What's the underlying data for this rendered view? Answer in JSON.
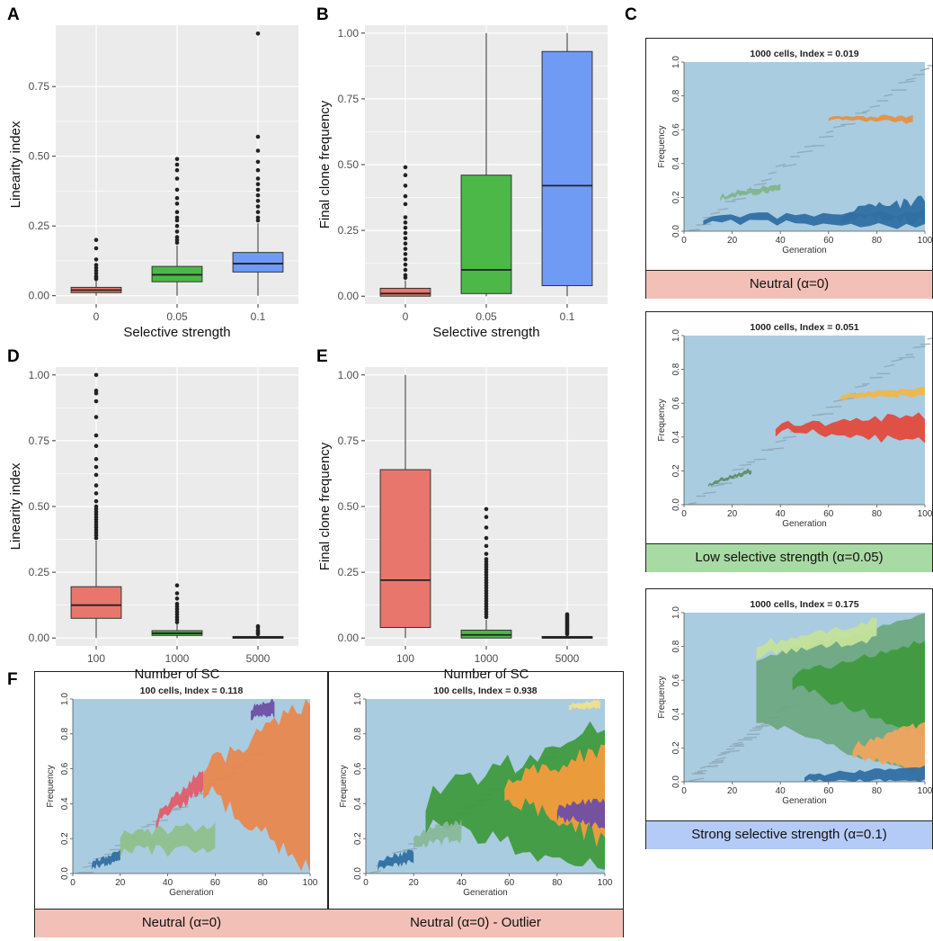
{
  "panel_letters": {
    "A": "A",
    "B": "B",
    "C": "C",
    "D": "D",
    "E": "E",
    "F": "F"
  },
  "colors": {
    "red": "#E8766C",
    "green": "#4CB848",
    "blue": "#6F9BF5",
    "panel_bg": "#EBEBEB",
    "muller_bg": "#A9CCE0",
    "cap_red": "#F3C0B8",
    "cap_green": "#A8DBA3",
    "cap_blue": "#B5CBF7"
  },
  "chart_data": [
    {
      "id": "A",
      "type": "box",
      "xlabel": "Selective strength",
      "ylabel": "Linearity index",
      "categories": [
        "0",
        "0.05",
        "0.1"
      ],
      "yticks": [
        "0.00",
        "0.25",
        "0.50",
        "0.75"
      ],
      "ylim": [
        -0.03,
        0.97
      ],
      "boxes": [
        {
          "q1": 0.011,
          "median": 0.02,
          "q3": 0.03,
          "whisk_lo": 0.0,
          "whisk_hi": 0.055,
          "outliers": [
            0.06,
            0.065,
            0.07,
            0.08,
            0.09,
            0.1,
            0.11,
            0.13,
            0.17,
            0.2
          ]
        },
        {
          "q1": 0.05,
          "median": 0.075,
          "q3": 0.105,
          "whisk_lo": 0.0,
          "whisk_hi": 0.18,
          "outliers": [
            0.19,
            0.2,
            0.21,
            0.23,
            0.25,
            0.27,
            0.28,
            0.3,
            0.33,
            0.35,
            0.38,
            0.42,
            0.45,
            0.47,
            0.49
          ]
        },
        {
          "q1": 0.085,
          "median": 0.115,
          "q3": 0.155,
          "whisk_lo": 0.0,
          "whisk_hi": 0.26,
          "outliers": [
            0.27,
            0.28,
            0.3,
            0.32,
            0.34,
            0.36,
            0.38,
            0.4,
            0.42,
            0.45,
            0.48,
            0.52,
            0.57,
            0.94
          ]
        }
      ]
    },
    {
      "id": "B",
      "type": "box",
      "xlabel": "Selective strength",
      "ylabel": "Final clone frequency",
      "categories": [
        "0",
        "0.05",
        "0.1"
      ],
      "yticks": [
        "0.00",
        "0.25",
        "0.50",
        "0.75",
        "1.00"
      ],
      "ylim": [
        -0.03,
        1.03
      ],
      "boxes": [
        {
          "q1": 0.0,
          "median": 0.01,
          "q3": 0.03,
          "whisk_lo": 0.0,
          "whisk_hi": 0.06,
          "outliers": [
            0.07,
            0.08,
            0.1,
            0.12,
            0.14,
            0.16,
            0.18,
            0.2,
            0.22,
            0.24,
            0.26,
            0.28,
            0.3,
            0.35,
            0.38,
            0.42,
            0.46,
            0.49
          ]
        },
        {
          "q1": 0.01,
          "median": 0.1,
          "q3": 0.46,
          "whisk_lo": 0.0,
          "whisk_hi": 1.0,
          "outliers": []
        },
        {
          "q1": 0.04,
          "median": 0.42,
          "q3": 0.93,
          "whisk_lo": 0.0,
          "whisk_hi": 1.0,
          "outliers": []
        }
      ]
    },
    {
      "id": "D",
      "type": "box",
      "xlabel": "Number of SC",
      "ylabel": "Linearity index",
      "categories": [
        "100",
        "1000",
        "5000"
      ],
      "yticks": [
        "0.00",
        "0.25",
        "0.50",
        "0.75",
        "1.00"
      ],
      "ylim": [
        -0.03,
        1.03
      ],
      "boxes": [
        {
          "q1": 0.075,
          "median": 0.125,
          "q3": 0.195,
          "whisk_lo": 0.0,
          "whisk_hi": 0.37,
          "outliers": [
            0.38,
            0.39,
            0.4,
            0.41,
            0.42,
            0.43,
            0.44,
            0.45,
            0.46,
            0.47,
            0.48,
            0.49,
            0.5,
            0.52,
            0.55,
            0.58,
            0.62,
            0.65,
            0.68,
            0.73,
            0.77,
            0.84,
            0.9,
            0.93,
            0.94,
            1.0
          ]
        },
        {
          "q1": 0.01,
          "median": 0.018,
          "q3": 0.028,
          "whisk_lo": 0.0,
          "whisk_hi": 0.055,
          "outliers": [
            0.06,
            0.07,
            0.08,
            0.09,
            0.1,
            0.11,
            0.12,
            0.13,
            0.15,
            0.17,
            0.2
          ]
        },
        {
          "q1": 0.001,
          "median": 0.003,
          "q3": 0.006,
          "whisk_lo": 0.0,
          "whisk_hi": 0.012,
          "outliers": [
            0.015,
            0.02,
            0.025,
            0.03,
            0.04,
            0.045
          ]
        }
      ]
    },
    {
      "id": "E",
      "type": "box",
      "xlabel": "Number of SC",
      "ylabel": "Final clone frequency",
      "categories": [
        "100",
        "1000",
        "5000"
      ],
      "yticks": [
        "0.00",
        "0.25",
        "0.50",
        "0.75",
        "1.00"
      ],
      "ylim": [
        -0.03,
        1.03
      ],
      "boxes": [
        {
          "q1": 0.04,
          "median": 0.22,
          "q3": 0.64,
          "whisk_lo": 0.0,
          "whisk_hi": 1.0,
          "outliers": []
        },
        {
          "q1": 0.0,
          "median": 0.012,
          "q3": 0.03,
          "whisk_lo": 0.0,
          "whisk_hi": 0.07,
          "outliers": [
            0.08,
            0.09,
            0.1,
            0.11,
            0.12,
            0.13,
            0.14,
            0.15,
            0.16,
            0.17,
            0.18,
            0.19,
            0.2,
            0.21,
            0.22,
            0.23,
            0.24,
            0.25,
            0.26,
            0.27,
            0.28,
            0.29,
            0.3,
            0.32,
            0.35,
            0.38,
            0.42,
            0.46,
            0.49
          ]
        },
        {
          "q1": 0.0,
          "median": 0.003,
          "q3": 0.006,
          "whisk_lo": 0.0,
          "whisk_hi": 0.012,
          "outliers": [
            0.015,
            0.02,
            0.025,
            0.03,
            0.035,
            0.04,
            0.045,
            0.05,
            0.055,
            0.06,
            0.065,
            0.07,
            0.075,
            0.08,
            0.085,
            0.09
          ]
        }
      ]
    },
    {
      "id": "C1",
      "type": "area",
      "title": "1000 cells, Index = 0.019",
      "xlabel": "Generation",
      "ylabel": "Frequency",
      "xticks": [
        "0",
        "20",
        "40",
        "60",
        "80",
        "100"
      ],
      "yticks": [
        "0.0",
        "0.2",
        "0.4",
        "0.6",
        "0.8",
        "1.0"
      ],
      "xlim": [
        0,
        100
      ],
      "ylim": [
        0,
        1
      ]
    },
    {
      "id": "C2",
      "type": "area",
      "title": "1000 cells, Index = 0.051",
      "xlabel": "Generation",
      "ylabel": "Frequency",
      "xticks": [
        "0",
        "20",
        "40",
        "60",
        "80",
        "100"
      ],
      "yticks": [
        "0.0",
        "0.2",
        "0.4",
        "0.6",
        "0.8",
        "1.0"
      ],
      "xlim": [
        0,
        100
      ],
      "ylim": [
        0,
        1
      ]
    },
    {
      "id": "C3",
      "type": "area",
      "title": "1000 cells, Index = 0.175",
      "xlabel": "Generation",
      "ylabel": "Frequency",
      "xticks": [
        "0",
        "20",
        "40",
        "60",
        "80",
        "100"
      ],
      "yticks": [
        "0.0",
        "0.2",
        "0.4",
        "0.6",
        "0.8",
        "1.0"
      ],
      "xlim": [
        0,
        100
      ],
      "ylim": [
        0,
        1
      ]
    },
    {
      "id": "F1",
      "type": "area",
      "title": "100 cells, Index = 0.118",
      "xlabel": "Generation",
      "ylabel": "Frequency",
      "xticks": [
        "0",
        "20",
        "40",
        "60",
        "80",
        "100"
      ],
      "yticks": [
        "0.0",
        "0.2",
        "0.4",
        "0.6",
        "0.8",
        "1.0"
      ],
      "xlim": [
        0,
        100
      ],
      "ylim": [
        0,
        1
      ]
    },
    {
      "id": "F2",
      "type": "area",
      "title": "100 cells, Index = 0.938",
      "xlabel": "Generation",
      "ylabel": "Frequency",
      "xticks": [
        "0",
        "20",
        "40",
        "60",
        "80",
        "100"
      ],
      "yticks": [
        "0.0",
        "0.2",
        "0.4",
        "0.6",
        "0.8",
        "1.0"
      ],
      "xlim": [
        0,
        100
      ],
      "ylim": [
        0,
        1
      ]
    }
  ],
  "captions": {
    "c1": "Neutral (α=0)",
    "c2": "Low selective strength (α=0.05)",
    "c3": "Strong selective strength (α=0.1)",
    "f1": "Neutral (α=0)",
    "f2": "Neutral (α=0) - Outlier"
  }
}
